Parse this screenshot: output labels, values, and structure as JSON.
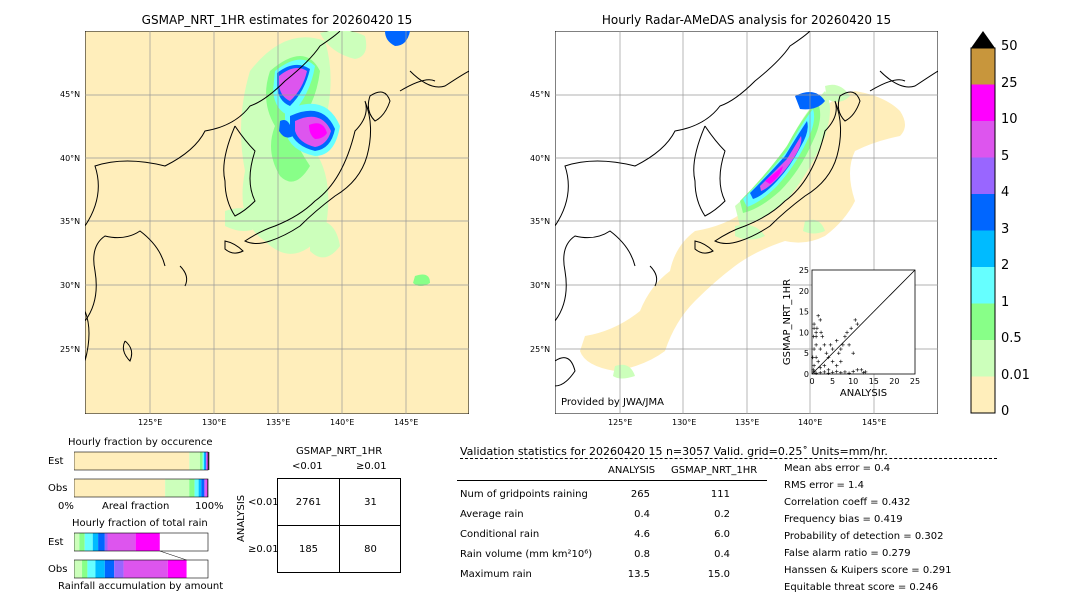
{
  "left_map": {
    "title": "GSMAP_NRT_1HR estimates for 20260420 15",
    "lat_labels": [
      "45°N",
      "40°N",
      "35°N",
      "30°N",
      "25°N"
    ],
    "lon_labels": [
      "125°E",
      "130°E",
      "135°E",
      "140°E",
      "145°E"
    ]
  },
  "right_map": {
    "title": "Hourly Radar-AMeDAS analysis for 20260420 15",
    "lat_labels": [
      "45°N",
      "40°N",
      "35°N",
      "30°N",
      "25°N"
    ],
    "lon_labels": [
      "125°E",
      "130°E",
      "135°E",
      "140°E",
      "145°E"
    ],
    "credit": "Provided by JWA/JMA"
  },
  "colorbar": {
    "labels": [
      "50",
      "25",
      "10",
      "5",
      "4",
      "3",
      "2",
      "1",
      "0.5",
      "0.01",
      "0"
    ],
    "colors": [
      "#c8963c",
      "#ff00ff",
      "#dd55ee",
      "#9966ff",
      "#0066ff",
      "#00bbff",
      "#66ffff",
      "#88ff88",
      "#ccffbb",
      "#ffeebb"
    ]
  },
  "chart_data": [
    {
      "type": "scatter",
      "xlabel": "ANALYSIS",
      "ylabel": "GSMAP_NRT_1HR",
      "xlim": [
        0,
        25
      ],
      "ylim": [
        0,
        25
      ],
      "x_ticks": [
        "0",
        "5",
        "10",
        "15",
        "20",
        "25"
      ],
      "y_ticks": [
        "0",
        "5",
        "10",
        "15",
        "20",
        "25"
      ],
      "points": [
        [
          0.5,
          12
        ],
        [
          1,
          10
        ],
        [
          1.5,
          14
        ],
        [
          2,
          13
        ],
        [
          0.5,
          11
        ],
        [
          1,
          9
        ],
        [
          2.5,
          9
        ],
        [
          3,
          7
        ],
        [
          1,
          7
        ],
        [
          0.5,
          6
        ],
        [
          2,
          6
        ],
        [
          4,
          4
        ],
        [
          5,
          6
        ],
        [
          6,
          8
        ],
        [
          7,
          6
        ],
        [
          8,
          9
        ],
        [
          8.5,
          10
        ],
        [
          9,
          7
        ],
        [
          10,
          5
        ],
        [
          10.5,
          13
        ],
        [
          11,
          12
        ],
        [
          12,
          1
        ],
        [
          7,
          3
        ],
        [
          6,
          2
        ],
        [
          5,
          3
        ],
        [
          4,
          1
        ],
        [
          3,
          2
        ],
        [
          2,
          1.5
        ],
        [
          1.5,
          3
        ],
        [
          1,
          4
        ],
        [
          0.5,
          2
        ],
        [
          0.3,
          1
        ],
        [
          0.5,
          0.5
        ],
        [
          1,
          0.2
        ],
        [
          2,
          0.3
        ],
        [
          3,
          0.5
        ],
        [
          4,
          0.2
        ],
        [
          5,
          0.4
        ],
        [
          6,
          0.6
        ],
        [
          7,
          0.3
        ],
        [
          8,
          0.5
        ],
        [
          9,
          0.2
        ],
        [
          10,
          0.6
        ],
        [
          11,
          1
        ],
        [
          12.5,
          0.3
        ],
        [
          13,
          0.5
        ],
        [
          0.2,
          4
        ],
        [
          0.4,
          9
        ],
        [
          1.2,
          11
        ],
        [
          2.2,
          10
        ],
        [
          3.5,
          5
        ],
        [
          4.5,
          7
        ],
        [
          6.5,
          5
        ],
        [
          7.5,
          7
        ],
        [
          9.5,
          11
        ]
      ]
    },
    {
      "type": "bar",
      "title": "Hourly fraction by occurence",
      "xlabel": "Areal fraction",
      "x_ticks": [
        "0%",
        "100%"
      ],
      "categories": [
        "Est",
        "Obs"
      ],
      "series": [
        {
          "color": "#ffeebb",
          "values": [
            0.86,
            0.68
          ]
        },
        {
          "color": "#ccffbb",
          "values": [
            0.08,
            0.18
          ]
        },
        {
          "color": "#88ff88",
          "values": [
            0.02,
            0.04
          ]
        },
        {
          "color": "#66ffff",
          "values": [
            0.01,
            0.03
          ]
        },
        {
          "color": "#00bbff",
          "values": [
            0.01,
            0.02
          ]
        },
        {
          "color": "#0066ff",
          "values": [
            0.005,
            0.02
          ]
        },
        {
          "color": "#9966ff",
          "values": [
            0.005,
            0.01
          ]
        },
        {
          "color": "#dd55ee",
          "values": [
            0.005,
            0.01
          ]
        },
        {
          "color": "#ff00ff",
          "values": [
            0.005,
            0.005
          ]
        },
        {
          "color": "#333333",
          "values": [
            0.01,
            0.005
          ]
        }
      ]
    },
    {
      "type": "bar",
      "title": "Hourly fraction of total rain",
      "xlabel": "Rainfall accumulation by amount",
      "categories": [
        "Est",
        "Obs"
      ],
      "series": [
        {
          "color": "#ccffbb",
          "values": [
            0.04,
            0.06
          ]
        },
        {
          "color": "#88ff88",
          "values": [
            0.04,
            0.04
          ]
        },
        {
          "color": "#66ffff",
          "values": [
            0.06,
            0.06
          ]
        },
        {
          "color": "#00bbff",
          "values": [
            0.04,
            0.07
          ]
        },
        {
          "color": "#0066ff",
          "values": [
            0.05,
            0.07
          ]
        },
        {
          "color": "#9966ff",
          "values": [
            0.02,
            0.07
          ]
        },
        {
          "color": "#dd55ee",
          "values": [
            0.21,
            0.33
          ]
        },
        {
          "color": "#ff00ff",
          "values": [
            0.18,
            0.14
          ]
        }
      ]
    }
  ],
  "contingency": {
    "title": "GSMAP_NRT_1HR",
    "col_headers": [
      "<0.01",
      "≥0.01"
    ],
    "row_axis_label": "ANALYSIS",
    "row_headers": [
      "<0.01",
      "≥0.01"
    ],
    "cells": [
      [
        "2761",
        "31"
      ],
      [
        "185",
        "80"
      ]
    ]
  },
  "validation": {
    "header": "Validation statistics for 20260420 15  n=3057 Valid. grid=0.25˚ Units=mm/hr.",
    "col_analysis": "ANALYSIS",
    "col_gsmap": "GSMAP_NRT_1HR",
    "rows": [
      {
        "label": "Num of gridpoints raining",
        "analysis": "265",
        "gsmap": "111"
      },
      {
        "label": "Average rain",
        "analysis": "0.4",
        "gsmap": "0.2"
      },
      {
        "label": "Conditional rain",
        "analysis": "4.6",
        "gsmap": "6.0"
      },
      {
        "label": "Rain volume (mm km²10⁶)",
        "analysis": "0.8",
        "gsmap": "0.4"
      },
      {
        "label": "Maximum rain",
        "analysis": "13.5",
        "gsmap": "15.0"
      }
    ],
    "scores": [
      "Mean abs error =    0.4",
      "RMS error =    1.4",
      "Correlation coeff =  0.432",
      "Frequency bias =  0.419",
      "Probability of detection =  0.302",
      "False alarm ratio =  0.279",
      "Hanssen & Kuipers score =  0.291",
      "Equitable threat score =  0.246"
    ]
  }
}
